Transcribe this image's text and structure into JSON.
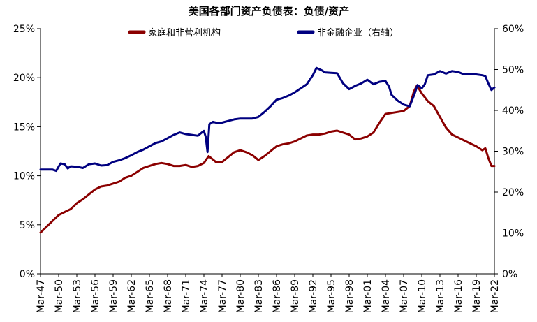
{
  "chart_data": {
    "type": "line",
    "title": "美国各部门资产负债表：负债/资产",
    "x_ticks": [
      "Mar-47",
      "Mar-50",
      "Mar-53",
      "Mar-56",
      "Mar-59",
      "Mar-62",
      "Mar-65",
      "Mar-68",
      "Mar-71",
      "Mar-74",
      "Mar-77",
      "Mar-80",
      "Mar-83",
      "Mar-86",
      "Mar-89",
      "Mar-92",
      "Mar-95",
      "Mar-98",
      "Mar-01",
      "Mar-04",
      "Mar-07",
      "Mar-10",
      "Mar-13",
      "Mar-16",
      "Mar-19",
      "Mar-22"
    ],
    "y_left": {
      "ticks": [
        "0%",
        "5%",
        "10%",
        "15%",
        "20%",
        "25%"
      ],
      "range": [
        0,
        25
      ]
    },
    "y_right": {
      "ticks": [
        "0%",
        "10%",
        "20%",
        "30%",
        "40%",
        "50%",
        "60%"
      ],
      "range": [
        0,
        60
      ]
    },
    "legend_position": "top",
    "grid": false,
    "series": [
      {
        "name": "家庭和非营利机构",
        "axis": "left",
        "color": "#8B0000",
        "points": [
          [
            1947.0,
            4.2
          ],
          [
            1948.0,
            4.8
          ],
          [
            1949.0,
            5.4
          ],
          [
            1950.0,
            6.0
          ],
          [
            1951.0,
            6.3
          ],
          [
            1952.0,
            6.6
          ],
          [
            1953.0,
            7.2
          ],
          [
            1954.0,
            7.6
          ],
          [
            1955.0,
            8.1
          ],
          [
            1956.0,
            8.6
          ],
          [
            1957.0,
            8.9
          ],
          [
            1958.0,
            9.0
          ],
          [
            1959.0,
            9.2
          ],
          [
            1960.0,
            9.4
          ],
          [
            1961.0,
            9.8
          ],
          [
            1962.0,
            10.0
          ],
          [
            1963.0,
            10.4
          ],
          [
            1964.0,
            10.8
          ],
          [
            1965.0,
            11.0
          ],
          [
            1966.0,
            11.2
          ],
          [
            1967.0,
            11.3
          ],
          [
            1968.0,
            11.2
          ],
          [
            1969.0,
            11.0
          ],
          [
            1970.0,
            11.0
          ],
          [
            1971.0,
            11.1
          ],
          [
            1972.0,
            10.9
          ],
          [
            1973.0,
            11.0
          ],
          [
            1974.0,
            11.3
          ],
          [
            1974.8,
            12.0
          ],
          [
            1976.0,
            11.4
          ],
          [
            1977.0,
            11.4
          ],
          [
            1978.0,
            11.9
          ],
          [
            1979.0,
            12.4
          ],
          [
            1980.0,
            12.6
          ],
          [
            1981.0,
            12.4
          ],
          [
            1982.0,
            12.1
          ],
          [
            1983.0,
            11.6
          ],
          [
            1984.0,
            12.0
          ],
          [
            1985.0,
            12.5
          ],
          [
            1986.0,
            13.0
          ],
          [
            1987.0,
            13.2
          ],
          [
            1988.0,
            13.3
          ],
          [
            1989.0,
            13.5
          ],
          [
            1990.0,
            13.8
          ],
          [
            1991.0,
            14.1
          ],
          [
            1992.0,
            14.2
          ],
          [
            1993.0,
            14.2
          ],
          [
            1994.0,
            14.3
          ],
          [
            1995.0,
            14.5
          ],
          [
            1996.0,
            14.6
          ],
          [
            1997.0,
            14.4
          ],
          [
            1998.0,
            14.2
          ],
          [
            1999.0,
            13.7
          ],
          [
            2000.0,
            13.8
          ],
          [
            2001.0,
            14.0
          ],
          [
            2002.0,
            14.4
          ],
          [
            2003.0,
            15.4
          ],
          [
            2004.0,
            16.3
          ],
          [
            2005.0,
            16.4
          ],
          [
            2006.0,
            16.5
          ],
          [
            2007.0,
            16.6
          ],
          [
            2008.0,
            17.1
          ],
          [
            2008.7,
            18.6
          ],
          [
            2009.2,
            19.2
          ],
          [
            2010.0,
            18.4
          ],
          [
            2011.0,
            17.6
          ],
          [
            2012.0,
            17.1
          ],
          [
            2013.0,
            16.0
          ],
          [
            2014.0,
            14.9
          ],
          [
            2015.0,
            14.2
          ],
          [
            2016.0,
            13.9
          ],
          [
            2017.0,
            13.6
          ],
          [
            2018.0,
            13.3
          ],
          [
            2019.0,
            13.0
          ],
          [
            2020.0,
            12.6
          ],
          [
            2020.5,
            12.8
          ],
          [
            2021.0,
            11.8
          ],
          [
            2021.5,
            11.0
          ],
          [
            2022.0,
            11.0
          ]
        ]
      },
      {
        "name": "非金融企业（右轴）",
        "axis": "right",
        "color": "#000080",
        "points": [
          [
            1947.0,
            25.5
          ],
          [
            1949.0,
            25.5
          ],
          [
            1949.6,
            25.2
          ],
          [
            1950.3,
            27.0
          ],
          [
            1951.0,
            26.8
          ],
          [
            1951.5,
            25.8
          ],
          [
            1952.0,
            26.3
          ],
          [
            1953.0,
            26.2
          ],
          [
            1954.0,
            25.9
          ],
          [
            1955.0,
            26.8
          ],
          [
            1956.0,
            27.0
          ],
          [
            1957.0,
            26.5
          ],
          [
            1958.0,
            26.6
          ],
          [
            1959.0,
            27.4
          ],
          [
            1960.0,
            27.8
          ],
          [
            1961.0,
            28.3
          ],
          [
            1962.0,
            29.0
          ],
          [
            1963.0,
            29.8
          ],
          [
            1964.0,
            30.4
          ],
          [
            1965.0,
            31.2
          ],
          [
            1966.0,
            32.0
          ],
          [
            1967.0,
            32.4
          ],
          [
            1968.0,
            33.2
          ],
          [
            1969.0,
            34.0
          ],
          [
            1970.0,
            34.6
          ],
          [
            1971.0,
            34.2
          ],
          [
            1972.0,
            34.0
          ],
          [
            1973.0,
            33.8
          ],
          [
            1974.0,
            35.0
          ],
          [
            1974.3,
            33.5
          ],
          [
            1974.6,
            29.8
          ],
          [
            1974.9,
            36.6
          ],
          [
            1975.5,
            37.2
          ],
          [
            1976.0,
            37.0
          ],
          [
            1977.0,
            37.0
          ],
          [
            1978.0,
            37.4
          ],
          [
            1979.0,
            37.8
          ],
          [
            1980.0,
            38.0
          ],
          [
            1981.0,
            38.0
          ],
          [
            1982.0,
            38.0
          ],
          [
            1983.0,
            38.4
          ],
          [
            1984.0,
            39.6
          ],
          [
            1985.0,
            41.0
          ],
          [
            1986.0,
            42.6
          ],
          [
            1987.0,
            43.0
          ],
          [
            1988.0,
            43.6
          ],
          [
            1989.0,
            44.4
          ],
          [
            1990.0,
            45.4
          ],
          [
            1991.0,
            46.4
          ],
          [
            1992.0,
            48.6
          ],
          [
            1992.6,
            50.4
          ],
          [
            1993.5,
            49.8
          ],
          [
            1994.0,
            49.3
          ],
          [
            1995.0,
            49.2
          ],
          [
            1996.0,
            49.1
          ],
          [
            1997.0,
            46.6
          ],
          [
            1998.0,
            45.2
          ],
          [
            1999.0,
            46.0
          ],
          [
            2000.0,
            46.6
          ],
          [
            2001.0,
            47.5
          ],
          [
            2002.0,
            46.4
          ],
          [
            2003.0,
            47.0
          ],
          [
            2004.0,
            47.2
          ],
          [
            2004.6,
            45.8
          ],
          [
            2005.0,
            43.8
          ],
          [
            2006.0,
            42.4
          ],
          [
            2007.0,
            41.4
          ],
          [
            2008.0,
            41.0
          ],
          [
            2008.8,
            44.0
          ],
          [
            2009.3,
            46.2
          ],
          [
            2010.0,
            45.4
          ],
          [
            2010.5,
            46.4
          ],
          [
            2011.0,
            48.6
          ],
          [
            2012.0,
            48.8
          ],
          [
            2013.0,
            49.6
          ],
          [
            2014.0,
            49.0
          ],
          [
            2015.0,
            49.6
          ],
          [
            2016.0,
            49.4
          ],
          [
            2017.0,
            48.8
          ],
          [
            2018.0,
            48.9
          ],
          [
            2019.0,
            48.8
          ],
          [
            2020.0,
            48.6
          ],
          [
            2020.5,
            48.4
          ],
          [
            2021.0,
            46.6
          ],
          [
            2021.5,
            45.0
          ],
          [
            2022.0,
            45.6
          ]
        ]
      }
    ]
  }
}
